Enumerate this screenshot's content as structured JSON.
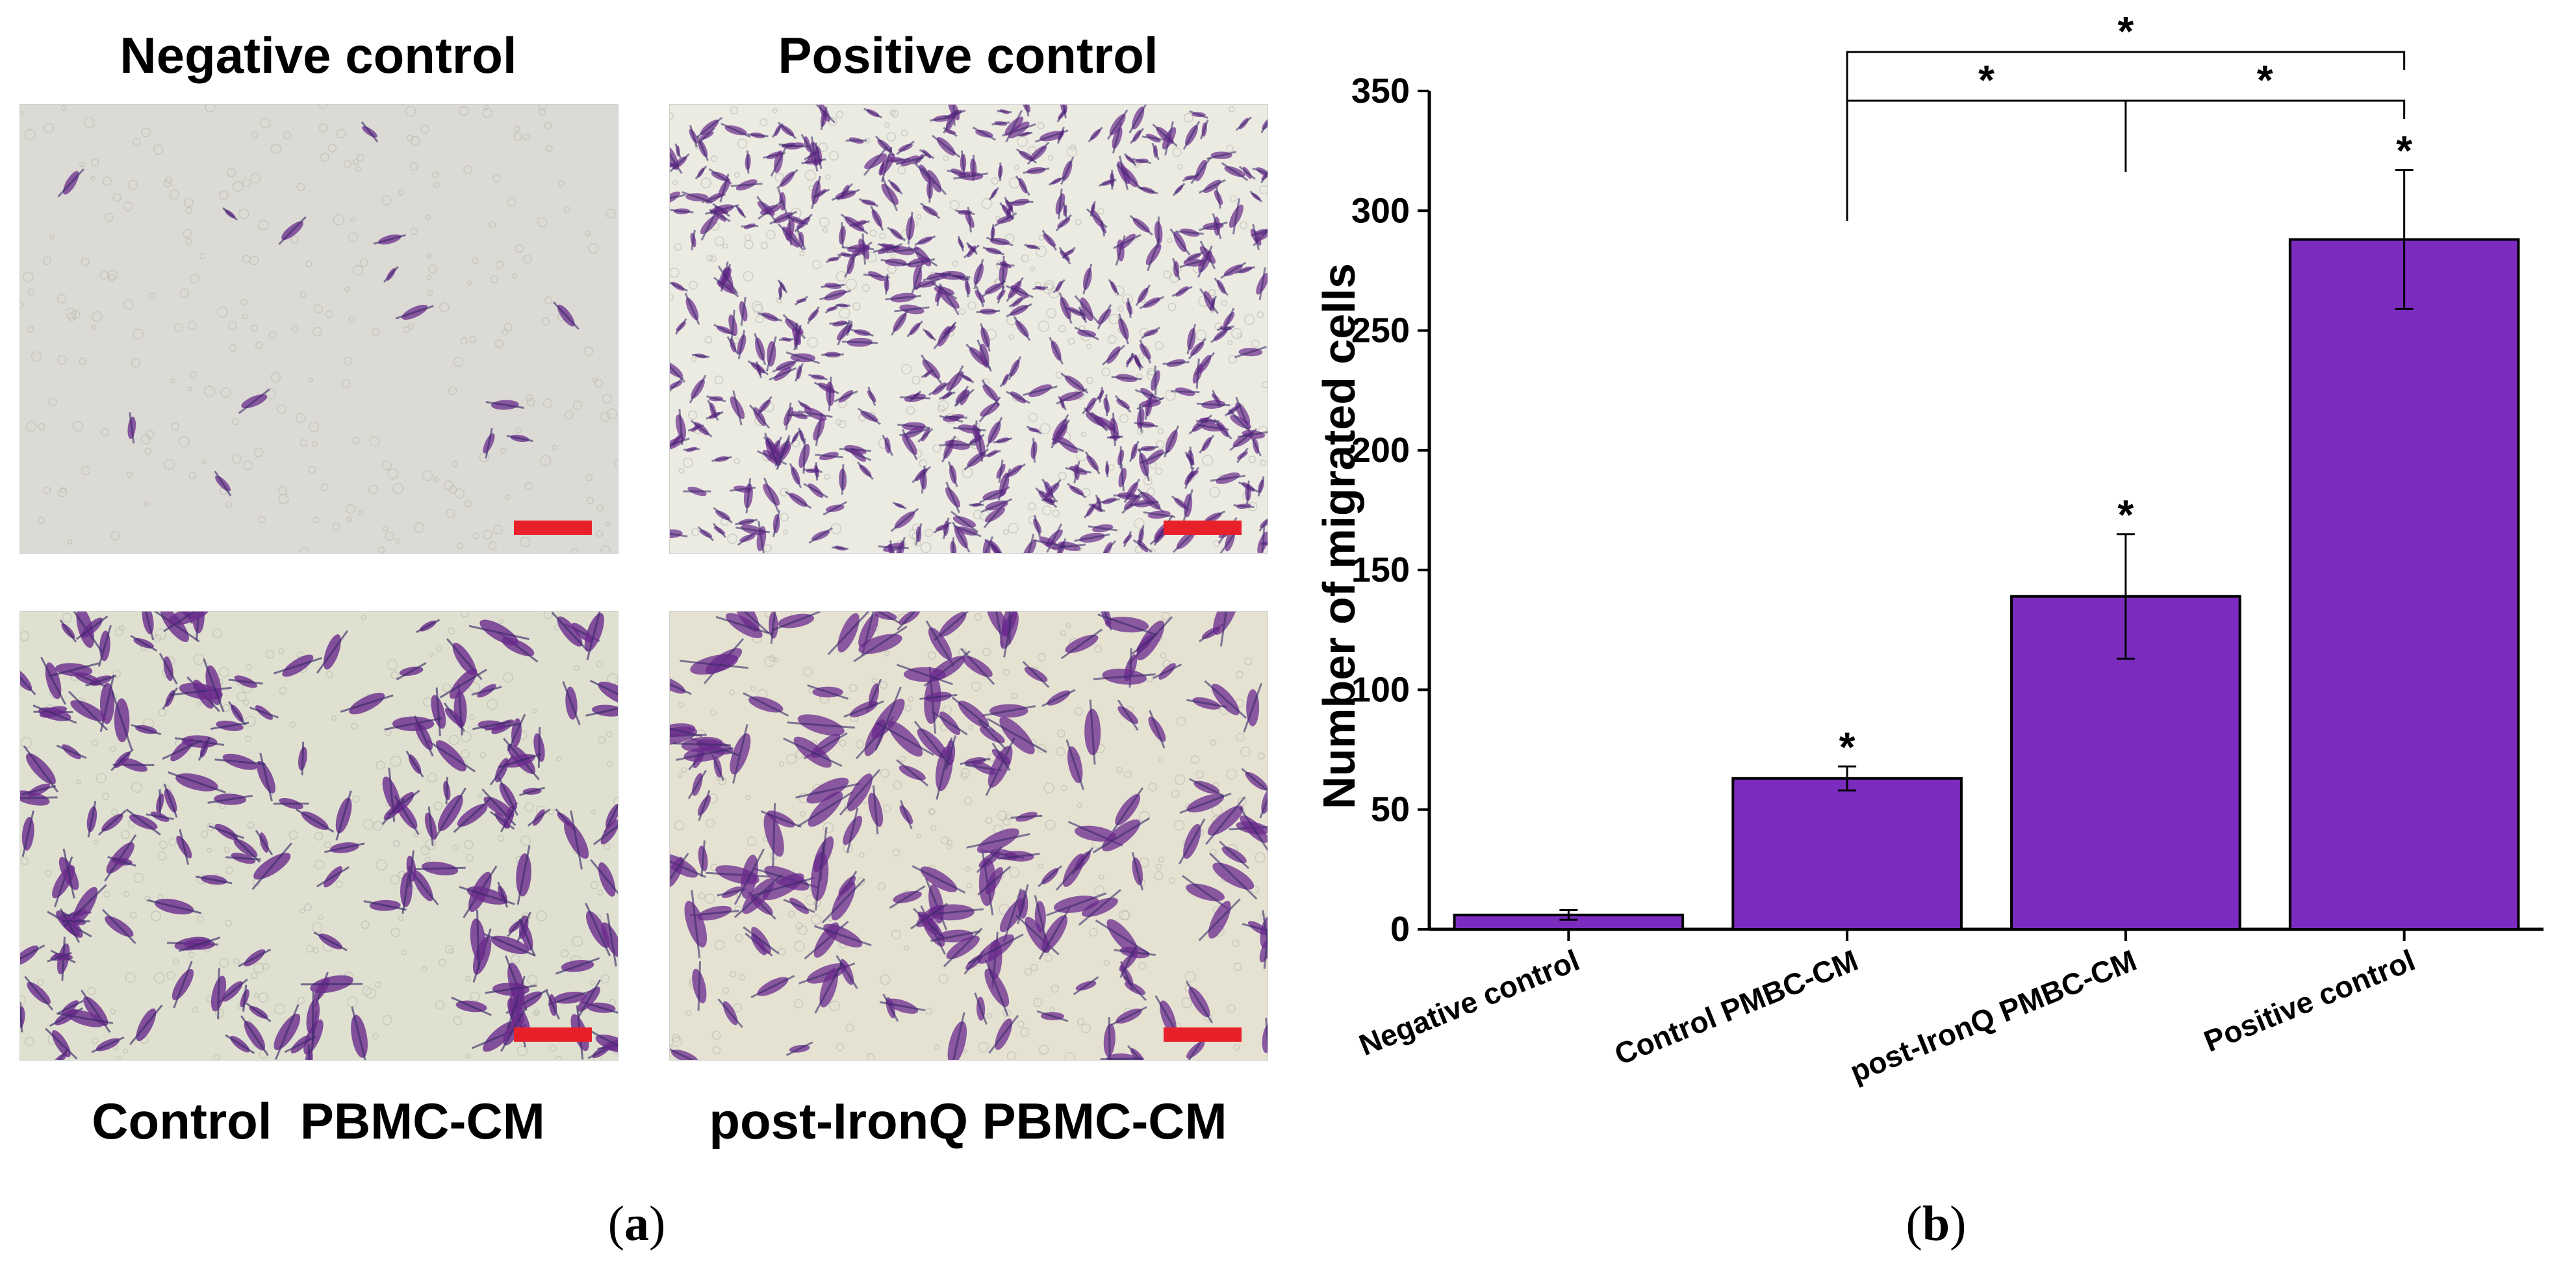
{
  "panel_a": {
    "titles": {
      "top_left": "Negative control",
      "top_right": "Positive control",
      "bottom_left": "Control  PBMC-CM",
      "bottom_right": "post-IronQ PBMC-CM"
    },
    "panel_letter": "a"
  },
  "panel_b": {
    "panel_letter": "b"
  },
  "colors": {
    "bar_fill": "#7b2cbf",
    "scale_bar": "#e8202a",
    "stain": "#6a2a8c"
  },
  "chart_data": {
    "type": "bar",
    "title": "",
    "xlabel": "",
    "ylabel": "Number of migrated cells",
    "categories": [
      "Negative control",
      "Control PMBC-CM",
      "post-IronQ PMBC-CM",
      "Positive control"
    ],
    "values": [
      6,
      63,
      139,
      288
    ],
    "error": [
      2,
      5,
      26,
      29
    ],
    "ylim": [
      0,
      350
    ],
    "yticks": [
      0,
      50,
      100,
      150,
      200,
      250,
      300,
      350
    ],
    "significance_marks": [
      "",
      "*",
      "*",
      "*"
    ],
    "brackets": [
      {
        "from": 1,
        "to": 3,
        "label": "*"
      },
      {
        "from": 1,
        "to": 2,
        "label": "*"
      },
      {
        "from": 2,
        "to": 3,
        "label": "*"
      }
    ],
    "grid": false
  }
}
